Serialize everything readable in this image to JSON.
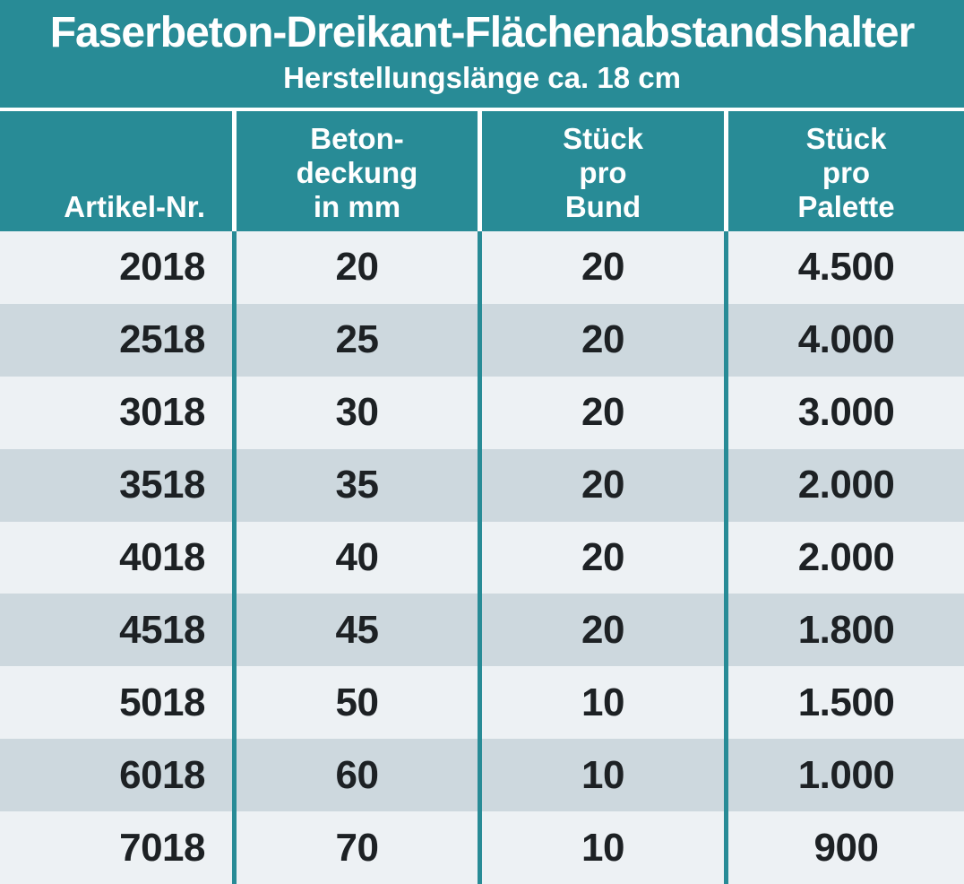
{
  "header": {
    "title": "Faserbeton-Dreikant-Flächenabstandshalter",
    "subtitle": "Herstellungslänge ca. 18 cm"
  },
  "table": {
    "columns": [
      {
        "label": "Artikel-Nr."
      },
      {
        "label": "Beton-\ndeckung\nin mm"
      },
      {
        "label": "Stück\npro\nBund"
      },
      {
        "label": "Stück\npro\nPalette"
      }
    ],
    "rows": [
      {
        "artikel_nr": "2018",
        "betondeckung_mm": "20",
        "stueck_pro_bund": "20",
        "stueck_pro_palette": "4.500"
      },
      {
        "artikel_nr": "2518",
        "betondeckung_mm": "25",
        "stueck_pro_bund": "20",
        "stueck_pro_palette": "4.000"
      },
      {
        "artikel_nr": "3018",
        "betondeckung_mm": "30",
        "stueck_pro_bund": "20",
        "stueck_pro_palette": "3.000"
      },
      {
        "artikel_nr": "3518",
        "betondeckung_mm": "35",
        "stueck_pro_bund": "20",
        "stueck_pro_palette": "2.000"
      },
      {
        "artikel_nr": "4018",
        "betondeckung_mm": "40",
        "stueck_pro_bund": "20",
        "stueck_pro_palette": "2.000"
      },
      {
        "artikel_nr": "4518",
        "betondeckung_mm": "45",
        "stueck_pro_bund": "20",
        "stueck_pro_palette": "1.800"
      },
      {
        "artikel_nr": "5018",
        "betondeckung_mm": "50",
        "stueck_pro_bund": "10",
        "stueck_pro_palette": "1.500"
      },
      {
        "artikel_nr": "6018",
        "betondeckung_mm": "60",
        "stueck_pro_bund": "10",
        "stueck_pro_palette": "1.000"
      },
      {
        "artikel_nr": "7018",
        "betondeckung_mm": "70",
        "stueck_pro_bund": "10",
        "stueck_pro_palette": "900"
      }
    ]
  },
  "colors": {
    "teal": "#288b96",
    "row_light": "#edf1f4",
    "row_dark": "#cdd8de",
    "text_dark": "#1d2124",
    "line_white": "#ffffff"
  },
  "chart_data": {
    "type": "table",
    "title": "Faserbeton-Dreikant-Flächenabstandshalter",
    "subtitle": "Herstellungslänge ca. 18 cm",
    "columns": [
      "Artikel-Nr.",
      "Betondeckung in mm",
      "Stück pro Bund",
      "Stück pro Palette"
    ],
    "rows": [
      [
        2018,
        20,
        20,
        4500
      ],
      [
        2518,
        25,
        20,
        4000
      ],
      [
        3018,
        30,
        20,
        3000
      ],
      [
        3518,
        35,
        20,
        2000
      ],
      [
        4018,
        40,
        20,
        2000
      ],
      [
        4518,
        45,
        20,
        1800
      ],
      [
        5018,
        50,
        10,
        1500
      ],
      [
        6018,
        60,
        10,
        1000
      ],
      [
        7018,
        70,
        10,
        900
      ]
    ]
  }
}
